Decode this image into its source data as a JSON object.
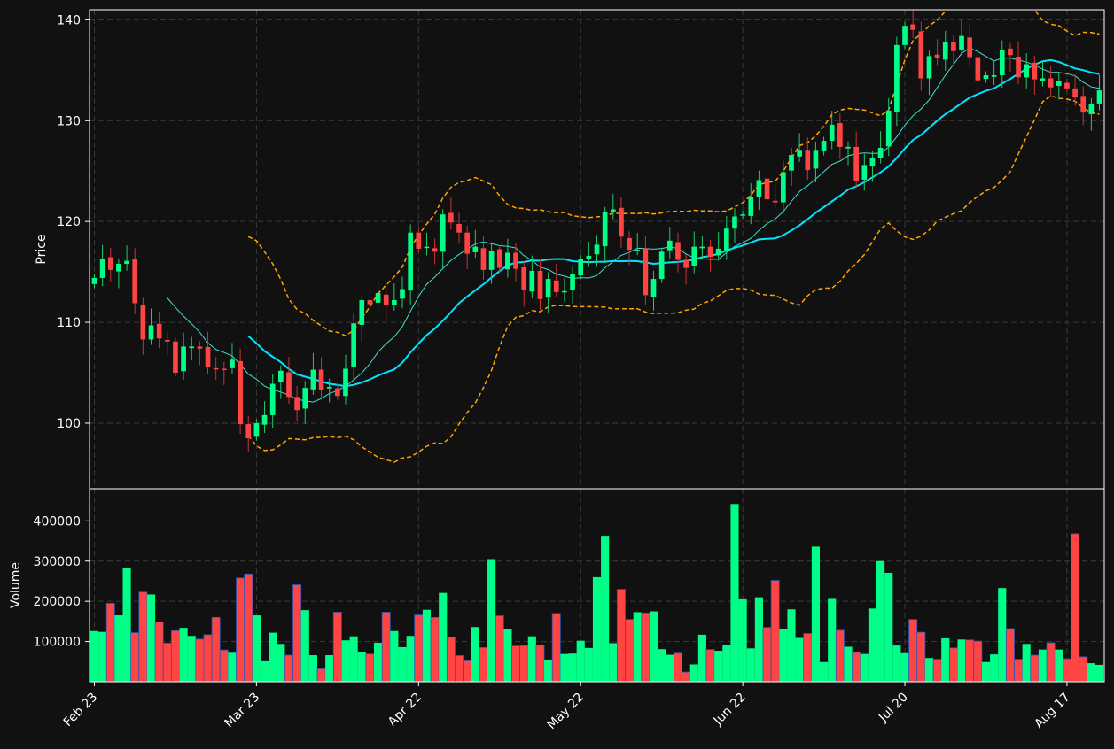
{
  "colors": {
    "background": "#111111",
    "up": "#00ff88",
    "down": "#ff4444",
    "wick_up": "#22cc66",
    "wick_down": "#cc3333",
    "ma_slow": "#00e5ff",
    "ma_fast": "#40e0d0",
    "bollinger": "#ffa500",
    "grid": "#3a3a3a",
    "axis": "#ffffff",
    "volume_edge": "#2c56b6"
  },
  "chart_data": [
    {
      "type": "candlestick",
      "ylabel": "Price",
      "ylim": [
        93.5,
        141
      ],
      "yticks": [
        100,
        110,
        120,
        130,
        140
      ],
      "grid": true,
      "xticks": [
        {
          "index": 0,
          "label": "Feb 23"
        },
        {
          "index": 20,
          "label": "Mar 23"
        },
        {
          "index": 40,
          "label": "Apr 22"
        },
        {
          "index": 60,
          "label": "May 22"
        },
        {
          "index": 80,
          "label": "Jun 22"
        },
        {
          "index": 100,
          "label": "Jul 20"
        },
        {
          "index": 120,
          "label": "Aug 17"
        }
      ],
      "close": [
        114.4,
        116.3,
        115.2,
        115.8,
        116.1,
        111.9,
        108.3,
        109.7,
        108.4,
        108.1,
        105.0,
        107.6,
        107.6,
        107.4,
        105.6,
        105.4,
        105.3,
        106.3,
        99.9,
        98.5,
        100.0,
        100.8,
        103.9,
        105.2,
        102.6,
        101.3,
        103.5,
        105.3,
        103.3,
        103.6,
        102.7,
        105.4,
        109.9,
        112.2,
        111.8,
        112.9,
        111.7,
        112.2,
        113.3,
        118.9,
        117.3,
        117.5,
        117.0,
        120.7,
        119.9,
        118.9,
        116.8,
        117.5,
        115.2,
        117.1,
        115.4,
        116.9,
        115.3,
        113.2,
        115.1,
        112.3,
        114.3,
        113.0,
        113.1,
        114.8,
        116.3,
        116.6,
        117.7,
        120.9,
        121.2,
        118.5,
        117.2,
        117.2,
        112.7,
        114.3,
        117.0,
        118.1,
        116.2,
        115.4,
        117.5,
        117.5,
        116.5,
        117.3,
        119.3,
        120.5,
        120.7,
        122.4,
        124.1,
        122.2,
        121.9,
        124.9,
        126.6,
        127.1,
        125.1,
        127.1,
        128.0,
        129.6,
        127.4,
        127.4,
        124.0,
        125.6,
        126.3,
        127.3,
        131.0,
        137.5,
        139.4,
        139.0,
        134.2,
        136.4,
        136.2,
        137.8,
        136.9,
        138.4,
        136.3,
        134.0,
        134.5,
        134.5,
        137.0,
        136.5,
        134.3,
        135.6,
        134.1,
        134.2,
        133.3,
        133.9,
        133.2,
        132.3,
        130.8,
        131.7,
        133.0
      ],
      "volume": [
        126000,
        124000,
        195000,
        165000,
        283000,
        122000,
        223000,
        217000,
        149000,
        96000,
        127000,
        134000,
        114000,
        106000,
        117000,
        160000,
        79000,
        72000,
        258000,
        268000,
        165000,
        51000,
        122000,
        94000,
        66000,
        241000,
        178000,
        66000,
        32000,
        66000,
        173000,
        103000,
        113000,
        74000,
        69000,
        97000,
        173000,
        126000,
        86000,
        114000,
        166000,
        179000,
        160000,
        221000,
        111000,
        65000,
        52000,
        136000,
        85000,
        305000,
        164000,
        131000,
        89000,
        90000,
        113000,
        91000,
        53000,
        170000,
        69000,
        70000,
        102000,
        84000,
        260000,
        363000,
        96000,
        230000,
        155000,
        173000,
        171000,
        175000,
        81000,
        67000,
        71000,
        24000,
        43000,
        117000,
        80000,
        77000,
        91000,
        442000,
        205000,
        83000,
        210000,
        135000,
        252000,
        132000,
        180000,
        109000,
        120000,
        336000,
        49000,
        206000,
        128000,
        87000,
        73000,
        69000,
        182000,
        300000,
        271000,
        90000,
        71000,
        155000,
        123000,
        59000,
        56000,
        108000,
        84000,
        105000,
        104000,
        101000,
        49000,
        68000,
        233000,
        132000,
        56000,
        94000,
        66000,
        80000,
        97000,
        80000,
        57000,
        368000,
        62000,
        46000,
        42000
      ],
      "volume_ylabel": "Volume",
      "volume_ylim": [
        0,
        480000
      ],
      "volume_yticks": [
        100000,
        200000,
        300000,
        400000
      ]
    }
  ]
}
